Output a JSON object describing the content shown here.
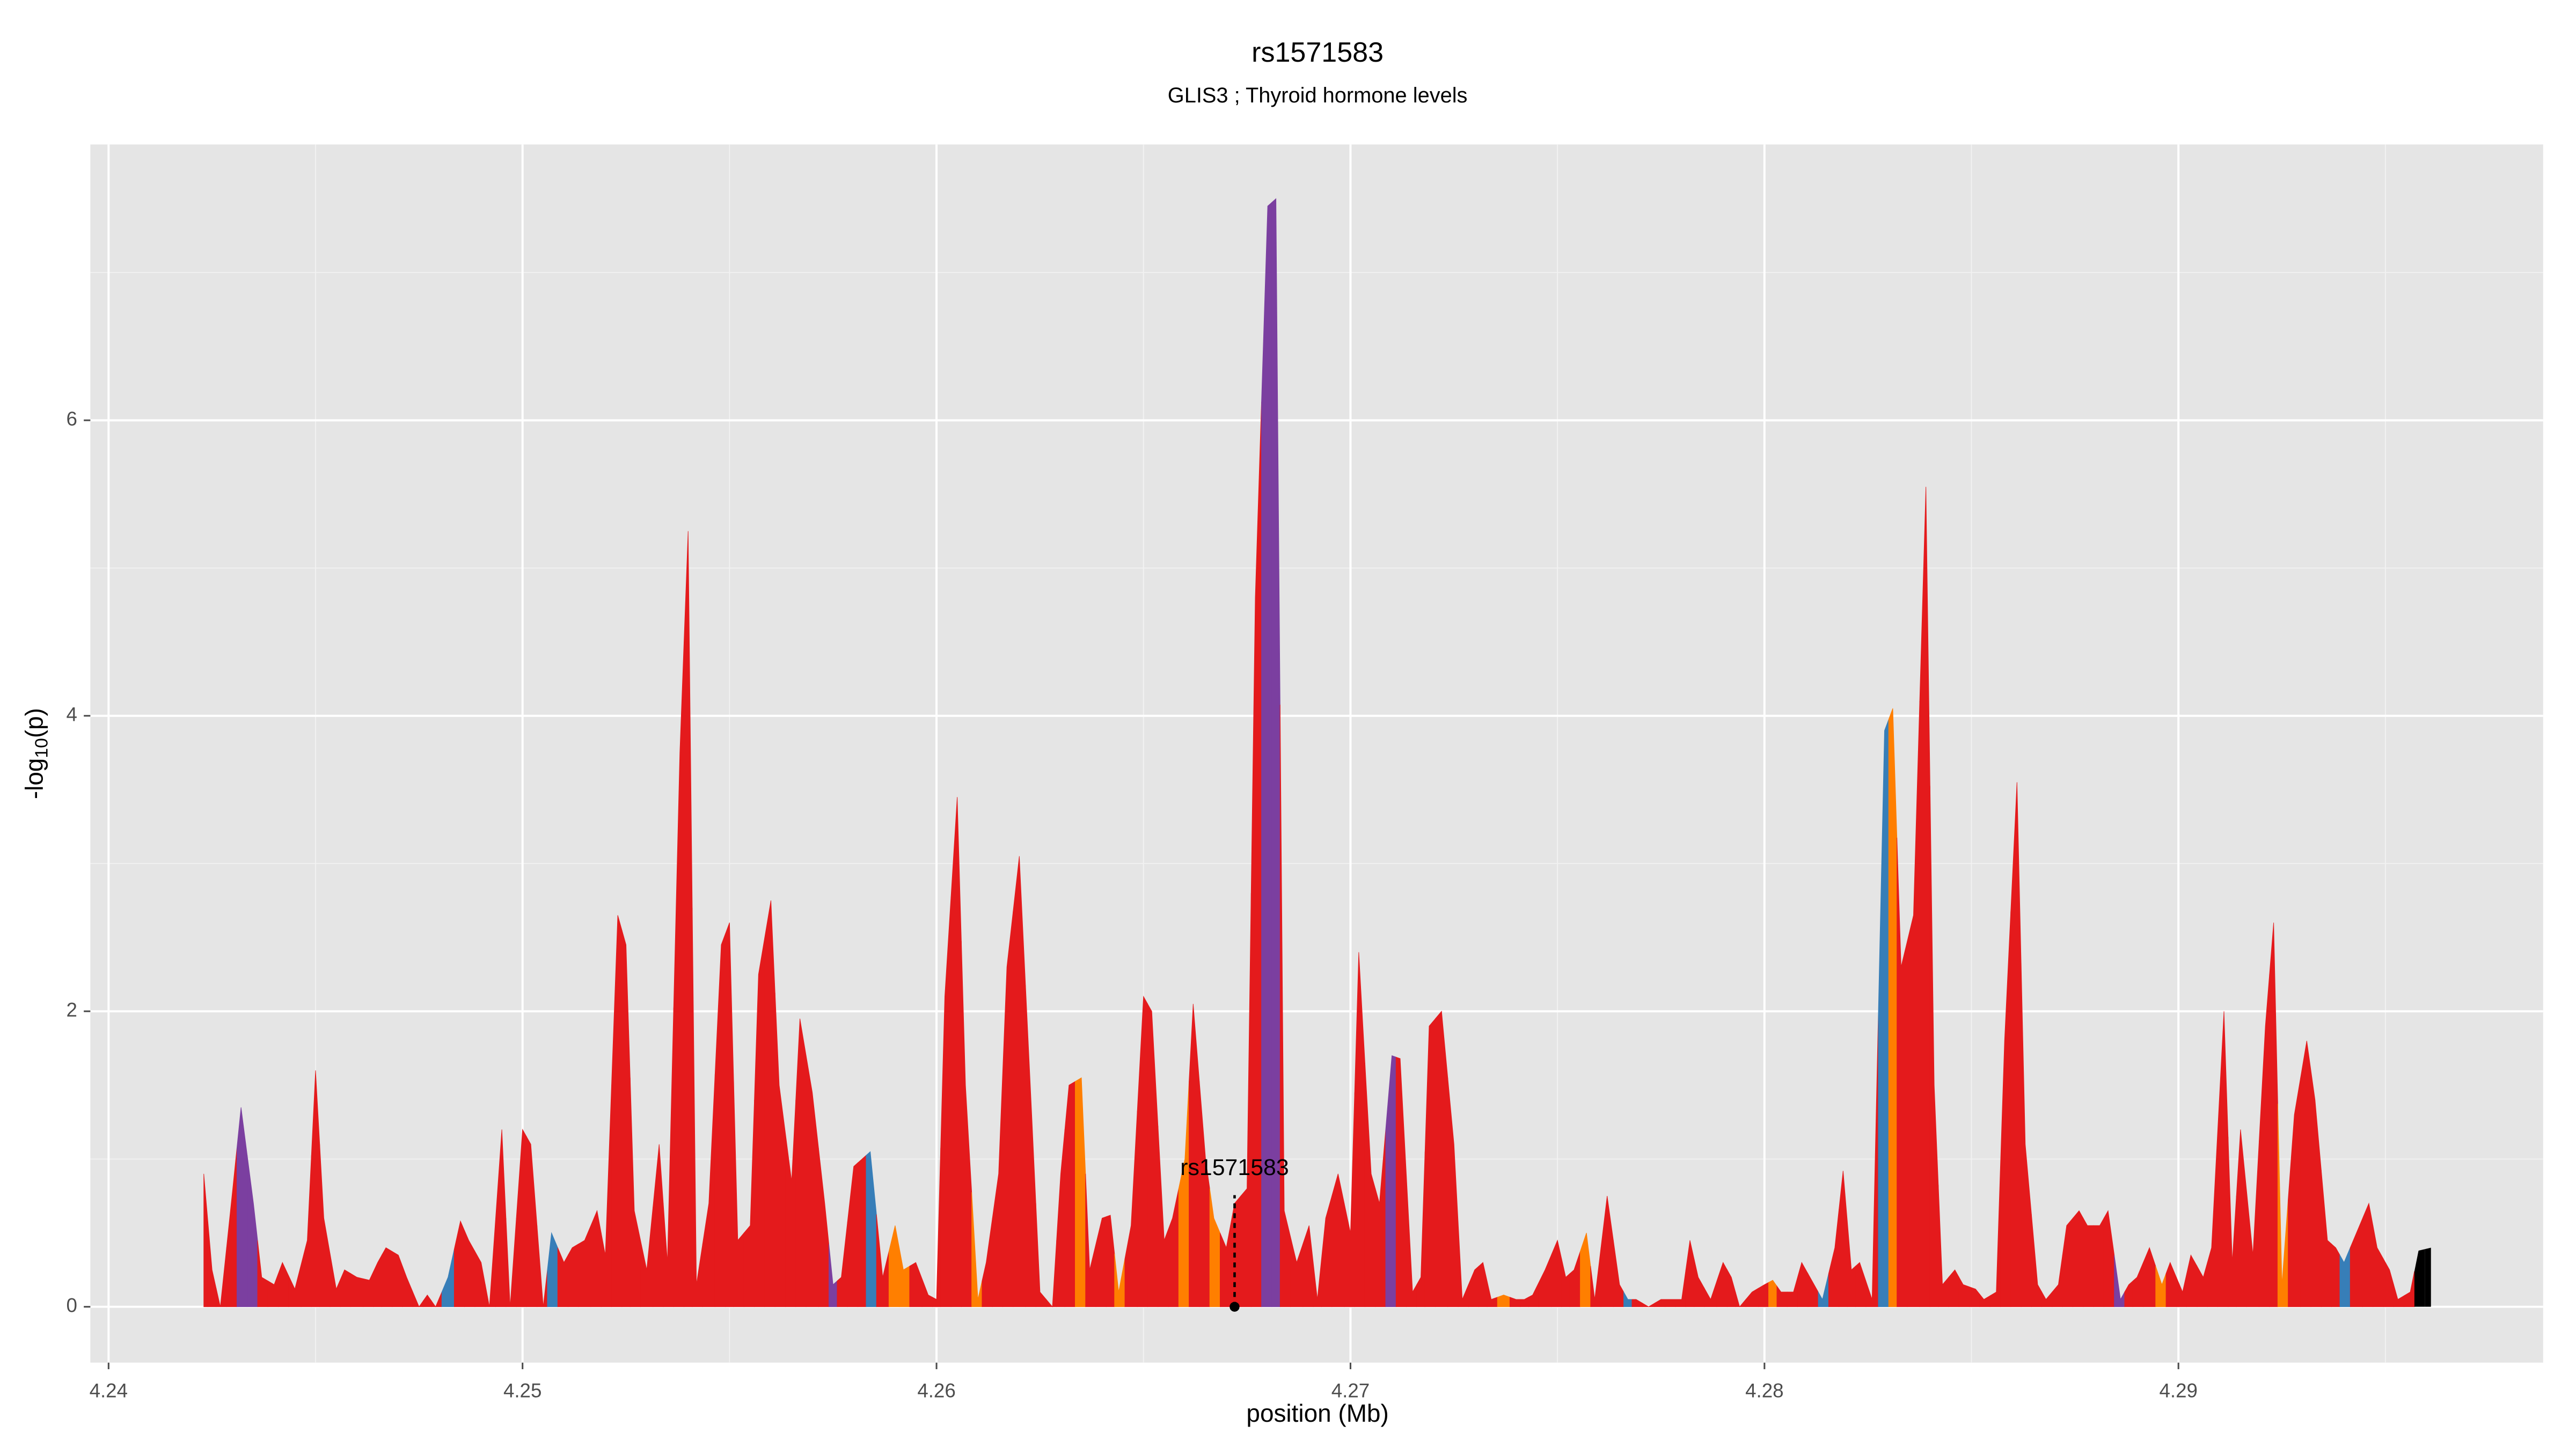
{
  "chart_data": {
    "type": "area",
    "title": "rs1571583",
    "subtitle": "GLIS3  ; Thyroid hormone levels",
    "x_label": "position (Mb)",
    "y_label": [
      "-log",
      "10",
      "(p)"
    ],
    "xlim": [
      4.23956,
      4.29881
    ],
    "ylim": [
      -0.378,
      7.867
    ],
    "xticks": [
      4.24,
      4.25,
      4.26,
      4.27,
      4.28,
      4.29
    ],
    "yticks": [
      0,
      2,
      4,
      6
    ],
    "grid": true,
    "annotation": {
      "label": "rs1571583",
      "x": 4.2672,
      "y": 0
    },
    "x": [
      4.2423,
      4.2425,
      4.2427,
      4.243,
      4.2432,
      4.2435,
      4.2437,
      4.244,
      4.2442,
      4.2445,
      4.2448,
      4.245,
      4.2452,
      4.2455,
      4.2457,
      4.246,
      4.2463,
      4.2465,
      4.2467,
      4.247,
      4.2472,
      4.2475,
      4.2477,
      4.2479,
      4.2482,
      4.2485,
      4.2487,
      4.249,
      4.2492,
      4.2495,
      4.2497,
      4.25,
      4.2502,
      4.2505,
      4.2507,
      4.251,
      4.2512,
      4.2515,
      4.2518,
      4.252,
      4.2523,
      4.2525,
      4.2527,
      4.253,
      4.2533,
      4.2535,
      4.2538,
      4.254,
      4.2542,
      4.2545,
      4.2548,
      4.255,
      4.2552,
      4.2555,
      4.2557,
      4.256,
      4.2562,
      4.2565,
      4.2567,
      4.257,
      4.2573,
      4.2575,
      4.2577,
      4.258,
      4.2582,
      4.2584,
      4.2587,
      4.259,
      4.2592,
      4.2595,
      4.2598,
      4.26,
      4.2602,
      4.2605,
      4.2607,
      4.261,
      4.2612,
      4.2615,
      4.2617,
      4.262,
      4.2623,
      4.2625,
      4.2628,
      4.263,
      4.2632,
      4.2635,
      4.2637,
      4.264,
      4.2642,
      4.2644,
      4.2647,
      4.265,
      4.2652,
      4.2655,
      4.2657,
      4.266,
      4.2662,
      4.2665,
      4.2667,
      4.267,
      4.2672,
      4.2675,
      4.2677,
      4.268,
      4.2682,
      4.2684,
      4.2687,
      4.269,
      4.2692,
      4.2694,
      4.2697,
      4.27,
      4.2702,
      4.2705,
      4.2707,
      4.271,
      4.2712,
      4.2715,
      4.2717,
      4.2719,
      4.2722,
      4.2725,
      4.2727,
      4.273,
      4.2732,
      4.2734,
      4.2737,
      4.274,
      4.2742,
      4.2744,
      4.2747,
      4.275,
      4.2752,
      4.2754,
      4.2757,
      4.2759,
      4.2762,
      4.2765,
      4.2767,
      4.2769,
      4.2772,
      4.2775,
      4.2777,
      4.278,
      4.2782,
      4.2784,
      4.2787,
      4.279,
      4.2792,
      4.2794,
      4.2797,
      4.28,
      4.2802,
      4.2804,
      4.2807,
      4.2809,
      4.2812,
      4.2814,
      4.2817,
      4.2819,
      4.2821,
      4.2823,
      4.2826,
      4.2829,
      4.2831,
      4.2833,
      4.2836,
      4.2839,
      4.2841,
      4.2843,
      4.2846,
      4.2848,
      4.2851,
      4.2853,
      4.2856,
      4.2858,
      4.2861,
      4.2863,
      4.2866,
      4.2868,
      4.2871,
      4.2873,
      4.2876,
      4.2878,
      4.2881,
      4.2883,
      4.2886,
      4.2888,
      4.289,
      4.2893,
      4.2896,
      4.2898,
      4.2901,
      4.2903,
      4.2906,
      4.2908,
      4.2911,
      4.2913,
      4.2915,
      4.2918,
      4.2921,
      4.2923,
      4.2925,
      4.2928,
      4.2931,
      4.2933,
      4.2936,
      4.2938,
      4.294,
      4.2943,
      4.2946,
      4.2948,
      4.2951,
      4.2953,
      4.2956,
      4.2958,
      4.2961
    ],
    "values": [
      0.9,
      0.25,
      0,
      0.8,
      1.35,
      0.7,
      0.2,
      0.15,
      0.3,
      0.12,
      0.45,
      1.6,
      0.6,
      0.12,
      0.25,
      0.2,
      0.18,
      0.3,
      0.4,
      0.35,
      0.2,
      0,
      0.08,
      0,
      0.2,
      0.58,
      0.45,
      0.3,
      0,
      1.2,
      0,
      1.2,
      1.1,
      0,
      0.5,
      0.3,
      0.4,
      0.45,
      0.65,
      0.35,
      2.65,
      2.45,
      0.65,
      0.25,
      1.1,
      0.3,
      3.75,
      5.25,
      0.15,
      0.7,
      2.45,
      2.6,
      0.45,
      0.55,
      2.25,
      2.75,
      1.5,
      0.85,
      1.95,
      1.45,
      0.7,
      0.15,
      0.2,
      0.95,
      1.0,
      1.05,
      0.2,
      0.55,
      0.25,
      0.3,
      0.08,
      0.05,
      2.1,
      3.45,
      1.5,
      0.05,
      0.3,
      0.9,
      2.3,
      3.05,
      1.3,
      0.1,
      0,
      0.9,
      1.5,
      1.55,
      0.25,
      0.6,
      0.62,
      0.1,
      0.55,
      2.1,
      2.0,
      0.45,
      0.6,
      1.0,
      2.05,
      1.0,
      0.6,
      0.4,
      0.7,
      0.8,
      4.8,
      7.45,
      7.5,
      0.65,
      0.3,
      0.55,
      0.05,
      0.6,
      0.9,
      0.5,
      2.4,
      0.9,
      0.7,
      1.7,
      1.68,
      0.1,
      0.2,
      1.9,
      2.0,
      1.1,
      0.05,
      0.25,
      0.3,
      0.05,
      0.08,
      0.05,
      0.05,
      0.08,
      0.25,
      0.45,
      0.2,
      0.25,
      0.5,
      0.05,
      0.75,
      0.15,
      0.05,
      0.05,
      0,
      0.05,
      0.05,
      0.05,
      0.45,
      0.2,
      0.05,
      0.3,
      0.2,
      0,
      0.1,
      0.15,
      0.18,
      0.1,
      0.1,
      0.3,
      0.15,
      0.05,
      0.4,
      0.92,
      0.25,
      0.3,
      0.05,
      3.9,
      4.05,
      2.3,
      2.65,
      5.55,
      1.5,
      0.15,
      0.25,
      0.15,
      0.12,
      0.05,
      0.1,
      1.8,
      3.55,
      1.1,
      0.15,
      0.05,
      0.15,
      0.55,
      0.65,
      0.55,
      0.55,
      0.65,
      0.05,
      0.15,
      0.2,
      0.4,
      0.15,
      0.3,
      0.1,
      0.35,
      0.2,
      0.4,
      2.0,
      0.3,
      1.2,
      0.35,
      1.9,
      2.6,
      0.15,
      1.3,
      1.8,
      1.4,
      0.45,
      0.4,
      0.3,
      0.5,
      0.7,
      0.4,
      0.25,
      0.05,
      0.1,
      0.38,
      0.4
    ],
    "point_colors": [
      "#e41a1c",
      "#e41a1c",
      "#e41a1c",
      "#e41a1c",
      "#7b3fa0",
      "#7b3fa0",
      "#e41a1c",
      "#e41a1c",
      "#e41a1c",
      "#e41a1c",
      "#e41a1c",
      "#e41a1c",
      "#e41a1c",
      "#e41a1c",
      "#e41a1c",
      "#e41a1c",
      "#e41a1c",
      "#e41a1c",
      "#e41a1c",
      "#e41a1c",
      "#e41a1c",
      "#e41a1c",
      "#e41a1c",
      "#e41a1c",
      "#377eb8",
      "#e41a1c",
      "#e41a1c",
      "#e41a1c",
      "#e41a1c",
      "#e41a1c",
      "#e41a1c",
      "#e41a1c",
      "#e41a1c",
      "#e41a1c",
      "#377eb8",
      "#e41a1c",
      "#e41a1c",
      "#e41a1c",
      "#e41a1c",
      "#e41a1c",
      "#e41a1c",
      "#e41a1c",
      "#e41a1c",
      "#e41a1c",
      "#e41a1c",
      "#e41a1c",
      "#e41a1c",
      "#e41a1c",
      "#e41a1c",
      "#e41a1c",
      "#e41a1c",
      "#e41a1c",
      "#e41a1c",
      "#e41a1c",
      "#e41a1c",
      "#e41a1c",
      "#e41a1c",
      "#e41a1c",
      "#e41a1c",
      "#e41a1c",
      "#e41a1c",
      "#7b3fa0",
      "#e41a1c",
      "#e41a1c",
      "#e41a1c",
      "#377eb8",
      "#e41a1c",
      "#ff7f00",
      "#ff7f00",
      "#e41a1c",
      "#e41a1c",
      "#e41a1c",
      "#e41a1c",
      "#e41a1c",
      "#e41a1c",
      "#ff7f00",
      "#e41a1c",
      "#e41a1c",
      "#e41a1c",
      "#e41a1c",
      "#e41a1c",
      "#e41a1c",
      "#e41a1c",
      "#e41a1c",
      "#e41a1c",
      "#ff7f00",
      "#e41a1c",
      "#e41a1c",
      "#e41a1c",
      "#ff7f00",
      "#e41a1c",
      "#e41a1c",
      "#e41a1c",
      "#e41a1c",
      "#e41a1c",
      "#ff7f00",
      "#e41a1c",
      "#e41a1c",
      "#ff7f00",
      "#e41a1c",
      "#e41a1c",
      "#e41a1c",
      "#e41a1c",
      "#7b3fa0",
      "#7b3fa0",
      "#e41a1c",
      "#e41a1c",
      "#e41a1c",
      "#e41a1c",
      "#e41a1c",
      "#e41a1c",
      "#e41a1c",
      "#e41a1c",
      "#e41a1c",
      "#e41a1c",
      "#7b3fa0",
      "#e41a1c",
      "#e41a1c",
      "#e41a1c",
      "#e41a1c",
      "#e41a1c",
      "#e41a1c",
      "#e41a1c",
      "#e41a1c",
      "#e41a1c",
      "#e41a1c",
      "#ff7f00",
      "#e41a1c",
      "#e41a1c",
      "#e41a1c",
      "#e41a1c",
      "#e41a1c",
      "#e41a1c",
      "#e41a1c",
      "#ff7f00",
      "#e41a1c",
      "#e41a1c",
      "#e41a1c",
      "#377eb8",
      "#e41a1c",
      "#e41a1c",
      "#e41a1c",
      "#e41a1c",
      "#e41a1c",
      "#e41a1c",
      "#e41a1c",
      "#e41a1c",
      "#e41a1c",
      "#e41a1c",
      "#e41a1c",
      "#e41a1c",
      "#e41a1c",
      "#ff7f00",
      "#e41a1c",
      "#e41a1c",
      "#e41a1c",
      "#e41a1c",
      "#377eb8",
      "#e41a1c",
      "#e41a1c",
      "#e41a1c",
      "#e41a1c",
      "#e41a1c",
      "#377eb8",
      "#ff7f00",
      "#e41a1c",
      "#e41a1c",
      "#e41a1c",
      "#e41a1c",
      "#e41a1c",
      "#e41a1c",
      "#e41a1c",
      "#e41a1c",
      "#e41a1c",
      "#e41a1c",
      "#e41a1c",
      "#e41a1c",
      "#e41a1c",
      "#e41a1c",
      "#e41a1c",
      "#e41a1c",
      "#e41a1c",
      "#e41a1c",
      "#e41a1c",
      "#e41a1c",
      "#e41a1c",
      "#7b3fa0",
      "#e41a1c",
      "#e41a1c",
      "#e41a1c",
      "#ff7f00",
      "#e41a1c",
      "#e41a1c",
      "#e41a1c",
      "#e41a1c",
      "#e41a1c",
      "#e41a1c",
      "#e41a1c",
      "#e41a1c",
      "#e41a1c",
      "#e41a1c",
      "#e41a1c",
      "#ff7f00",
      "#e41a1c",
      "#e41a1c",
      "#e41a1c",
      "#e41a1c",
      "#e41a1c",
      "#377eb8",
      "#e41a1c",
      "#e41a1c",
      "#e41a1c",
      "#e41a1c",
      "#e41a1c",
      "#e41a1c"
    ]
  }
}
